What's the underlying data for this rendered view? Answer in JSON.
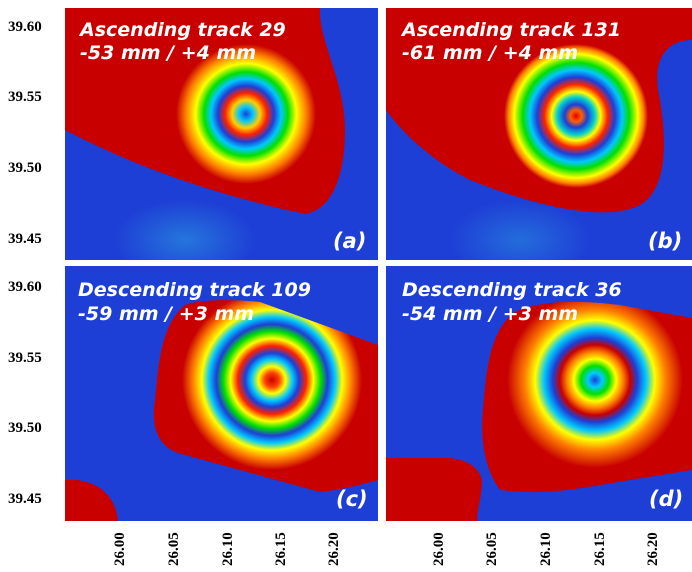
{
  "y_ticks": [
    "39.60",
    "39.55",
    "39.50",
    "39.45"
  ],
  "x_ticks": [
    "26.00",
    "26.05",
    "26.10",
    "26.15",
    "26.20"
  ],
  "panels": [
    {
      "id": "a",
      "title_line1": "Ascending track 29",
      "title_line2": "-53 mm / +4 mm",
      "label": "(a)"
    },
    {
      "id": "b",
      "title_line1": "Ascending track 131",
      "title_line2": "-61 mm / +4 mm",
      "label": "(b)"
    },
    {
      "id": "c",
      "title_line1": "Descending track 109",
      "title_line2": "-59 mm / +3 mm",
      "label": "(c)"
    },
    {
      "id": "d",
      "title_line1": "Descending track 36",
      "title_line2": "-54 mm / +3 mm",
      "label": "(d)"
    }
  ],
  "colors": {
    "background": "#1e3fd6",
    "far_field": "#c80000",
    "fringe": [
      "#1e3fd6",
      "#00c8ff",
      "#00e000",
      "#ffff00",
      "#ff8000",
      "#c80000"
    ]
  }
}
